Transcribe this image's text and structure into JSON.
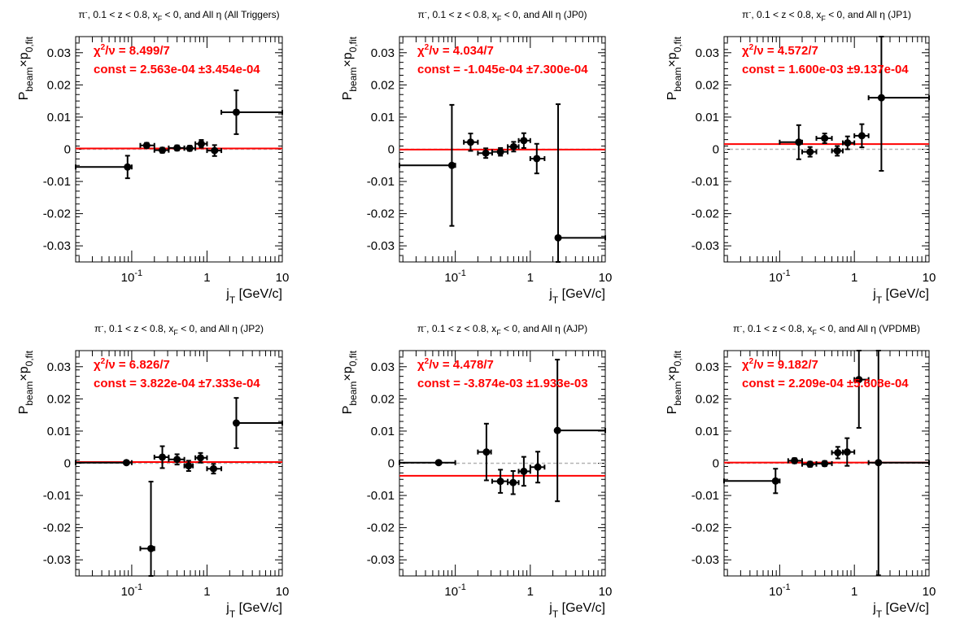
{
  "colors": {
    "fit": "#ff0000",
    "points": "#000000",
    "zero_line": "#b4b4b4",
    "axis": "#000000",
    "stats": "#ff0000"
  },
  "common": {
    "xlabel_main": "j",
    "xlabel_sub": "T",
    "xlabel_unit": "[GeV/c]",
    "ylabel_main": "P",
    "ylabel_sub1": "beam",
    "ylabel_mid": "×p",
    "ylabel_sub2": "0,fit",
    "x_scale": "log",
    "xlim": [
      0.018,
      10
    ],
    "ylim": [
      -0.035,
      0.035
    ],
    "y_ticks": [
      -0.03,
      -0.02,
      -0.01,
      0,
      0.01,
      0.02,
      0.03
    ],
    "y_tick_labels": [
      "-0.03",
      "-0.02",
      "-0.01",
      "0",
      "0.01",
      "0.02",
      "0.03"
    ],
    "x_tick_labels": [
      {
        "x": 0.1,
        "base": "10",
        "exp": "-1"
      },
      {
        "x": 1,
        "base": "1",
        "exp": ""
      },
      {
        "x": 10,
        "base": "10",
        "exp": ""
      }
    ],
    "grid": false
  },
  "chart_data": [
    {
      "type": "scatter",
      "title_parts": [
        "π",
        "-",
        ", 0.1 < z < 0.8, x",
        "F",
        " < 0, and All  η",
        " (All Triggers)"
      ],
      "chi2_value": "8.499/7",
      "const_value": "2.563e-04",
      "const_err": "±3.454e-04",
      "fit_const": 0.0002563,
      "points": [
        {
          "x": 0.088,
          "xlo": 0.018,
          "xhi": 0.1,
          "y": -0.0055,
          "ey": 0.0035
        },
        {
          "x": 0.158,
          "xlo": 0.13,
          "xhi": 0.2,
          "y": 0.0012,
          "ey": 0.0008
        },
        {
          "x": 0.255,
          "xlo": 0.2,
          "xhi": 0.31,
          "y": -0.0003,
          "ey": 0.0008
        },
        {
          "x": 0.4,
          "xlo": 0.31,
          "xhi": 0.5,
          "y": 0.0004,
          "ey": 0.0008
        },
        {
          "x": 0.59,
          "xlo": 0.5,
          "xhi": 0.7,
          "y": 0.0003,
          "ey": 0.0008
        },
        {
          "x": 0.84,
          "xlo": 0.7,
          "xhi": 1.0,
          "y": 0.0017,
          "ey": 0.0012
        },
        {
          "x": 1.26,
          "xlo": 1.0,
          "xhi": 1.55,
          "y": -0.0004,
          "ey": 0.0017
        },
        {
          "x": 2.45,
          "xlo": 1.55,
          "xhi": 10,
          "y": 0.0115,
          "ey": 0.0068
        }
      ]
    },
    {
      "type": "scatter",
      "title_parts": [
        "π",
        "-",
        ", 0.1 < z < 0.8, x",
        "F",
        " < 0, and All η",
        " (JP0)"
      ],
      "chi2_value": "4.034/7",
      "const_value": "-1.045e-04",
      "const_err": "±7.300e-04",
      "fit_const": -0.0001045,
      "points": [
        {
          "x": 0.09,
          "xlo": 0.018,
          "xhi": 0.1,
          "y": -0.005,
          "ey": 0.0188
        },
        {
          "x": 0.16,
          "xlo": 0.13,
          "xhi": 0.2,
          "y": 0.0022,
          "ey": 0.0027
        },
        {
          "x": 0.255,
          "xlo": 0.2,
          "xhi": 0.31,
          "y": -0.0012,
          "ey": 0.0015
        },
        {
          "x": 0.4,
          "xlo": 0.31,
          "xhi": 0.5,
          "y": -0.0008,
          "ey": 0.0012
        },
        {
          "x": 0.6,
          "xlo": 0.5,
          "xhi": 0.7,
          "y": 0.0008,
          "ey": 0.0015
        },
        {
          "x": 0.82,
          "xlo": 0.7,
          "xhi": 1.0,
          "y": 0.0027,
          "ey": 0.0023
        },
        {
          "x": 1.22,
          "xlo": 1.0,
          "xhi": 1.55,
          "y": -0.0029,
          "ey": 0.0046
        },
        {
          "x": 2.35,
          "xlo": 2.35,
          "xhi": 10,
          "y": -0.0275,
          "ey": 0.0415
        }
      ]
    },
    {
      "type": "scatter",
      "title_parts": [
        "π",
        "-",
        ", 0.1 < z < 0.8, x",
        "F",
        " < 0, and All η",
        " (JP1)"
      ],
      "chi2_value": "4.572/7",
      "const_value": "1.600e-03",
      "const_err": "±9.137e-04",
      "fit_const": 0.0016,
      "points": [
        {
          "x": 0.18,
          "xlo": 0.1,
          "xhi": 0.2,
          "y": 0.0022,
          "ey": 0.0053
        },
        {
          "x": 0.255,
          "xlo": 0.2,
          "xhi": 0.31,
          "y": -0.0008,
          "ey": 0.0015
        },
        {
          "x": 0.4,
          "xlo": 0.31,
          "xhi": 0.5,
          "y": 0.0034,
          "ey": 0.0015
        },
        {
          "x": 0.59,
          "xlo": 0.5,
          "xhi": 0.7,
          "y": -0.0005,
          "ey": 0.0015
        },
        {
          "x": 0.81,
          "xlo": 0.7,
          "xhi": 1.0,
          "y": 0.002,
          "ey": 0.002
        },
        {
          "x": 1.26,
          "xlo": 1.0,
          "xhi": 1.55,
          "y": 0.0042,
          "ey": 0.0036
        },
        {
          "x": 2.3,
          "xlo": 1.55,
          "xhi": 10,
          "y": 0.016,
          "ey": 0.0227
        }
      ]
    },
    {
      "type": "scatter",
      "title_parts": [
        "π",
        "-",
        ", 0.1 < z < 0.8, x",
        "F",
        " < 0, and All η",
        " (JP2)"
      ],
      "chi2_value": "6.826/7",
      "const_value": "3.822e-04",
      "const_err": "±7.333e-04",
      "fit_const": 0.0003822,
      "points": [
        {
          "x": 0.085,
          "xlo": 0.018,
          "xhi": 0.1,
          "y": 0.0002,
          "ey": 0
        },
        {
          "x": 0.18,
          "xlo": 0.13,
          "xhi": 0.2,
          "y": -0.0265,
          "ey": 0.0208
        },
        {
          "x": 0.255,
          "xlo": 0.2,
          "xhi": 0.31,
          "y": 0.0019,
          "ey": 0.0034
        },
        {
          "x": 0.4,
          "xlo": 0.31,
          "xhi": 0.5,
          "y": 0.0012,
          "ey": 0.0016
        },
        {
          "x": 0.57,
          "xlo": 0.5,
          "xhi": 0.65,
          "y": -0.0008,
          "ey": 0.0016
        },
        {
          "x": 0.82,
          "xlo": 0.7,
          "xhi": 1.0,
          "y": 0.0017,
          "ey": 0.0015
        },
        {
          "x": 1.22,
          "xlo": 1.0,
          "xhi": 1.55,
          "y": -0.0017,
          "ey": 0.0015
        },
        {
          "x": 2.45,
          "xlo": 2.45,
          "xhi": 10,
          "y": 0.0125,
          "ey": 0.0078
        }
      ]
    },
    {
      "type": "scatter",
      "title_parts": [
        "π",
        "-",
        ", 0.1 < z < 0.8, x",
        "F",
        " < 0, and All  η",
        " (AJP)"
      ],
      "chi2_value": "4.478/7",
      "const_value": "-3.874e-03",
      "const_err": "±1.933e-03",
      "fit_const": -0.003874,
      "points": [
        {
          "x": 0.06,
          "xlo": 0.018,
          "xhi": 0.1,
          "y": 0.0002,
          "ey": 0
        },
        {
          "x": 0.26,
          "xlo": 0.2,
          "xhi": 0.3,
          "y": 0.0035,
          "ey": 0.0088
        },
        {
          "x": 0.4,
          "xlo": 0.31,
          "xhi": 0.5,
          "y": -0.0056,
          "ey": 0.0036
        },
        {
          "x": 0.59,
          "xlo": 0.5,
          "xhi": 0.7,
          "y": -0.006,
          "ey": 0.0036
        },
        {
          "x": 0.82,
          "xlo": 0.7,
          "xhi": 1.0,
          "y": -0.0025,
          "ey": 0.0045
        },
        {
          "x": 1.26,
          "xlo": 1.0,
          "xhi": 1.55,
          "y": -0.0012,
          "ey": 0.0048
        },
        {
          "x": 2.3,
          "xlo": 2.3,
          "xhi": 10,
          "y": 0.0102,
          "ey": 0.022
        }
      ]
    },
    {
      "type": "scatter",
      "title_parts": [
        "π",
        "-",
        ", 0.1 < z < 0.8, x",
        "F",
        " < 0, and All  η",
        " (VPDMB)"
      ],
      "chi2_value": "9.182/7",
      "const_value": "2.209e-04",
      "const_err": "±5.608e-04",
      "fit_const": 0.0002209,
      "points": [
        {
          "x": 0.088,
          "xlo": 0.018,
          "xhi": 0.1,
          "y": -0.0055,
          "ey": 0.0038
        },
        {
          "x": 0.158,
          "xlo": 0.13,
          "xhi": 0.2,
          "y": 0.0008,
          "ey": 0.0008
        },
        {
          "x": 0.255,
          "xlo": 0.2,
          "xhi": 0.31,
          "y": -0.0003,
          "ey": 0.0008
        },
        {
          "x": 0.4,
          "xlo": 0.31,
          "xhi": 0.5,
          "y": -0.0001,
          "ey": 0.0008
        },
        {
          "x": 0.6,
          "xlo": 0.5,
          "xhi": 0.7,
          "y": 0.0033,
          "ey": 0.0018
        },
        {
          "x": 0.8,
          "xlo": 0.7,
          "xhi": 1.0,
          "y": 0.0035,
          "ey": 0.0043
        },
        {
          "x": 1.15,
          "xlo": 1.0,
          "xhi": 1.55,
          "y": 0.026,
          "ey": 0.015
        },
        {
          "x": 2.1,
          "xlo": 1.55,
          "xhi": 10,
          "y": 0.0002,
          "ey": 0.035
        }
      ]
    }
  ]
}
